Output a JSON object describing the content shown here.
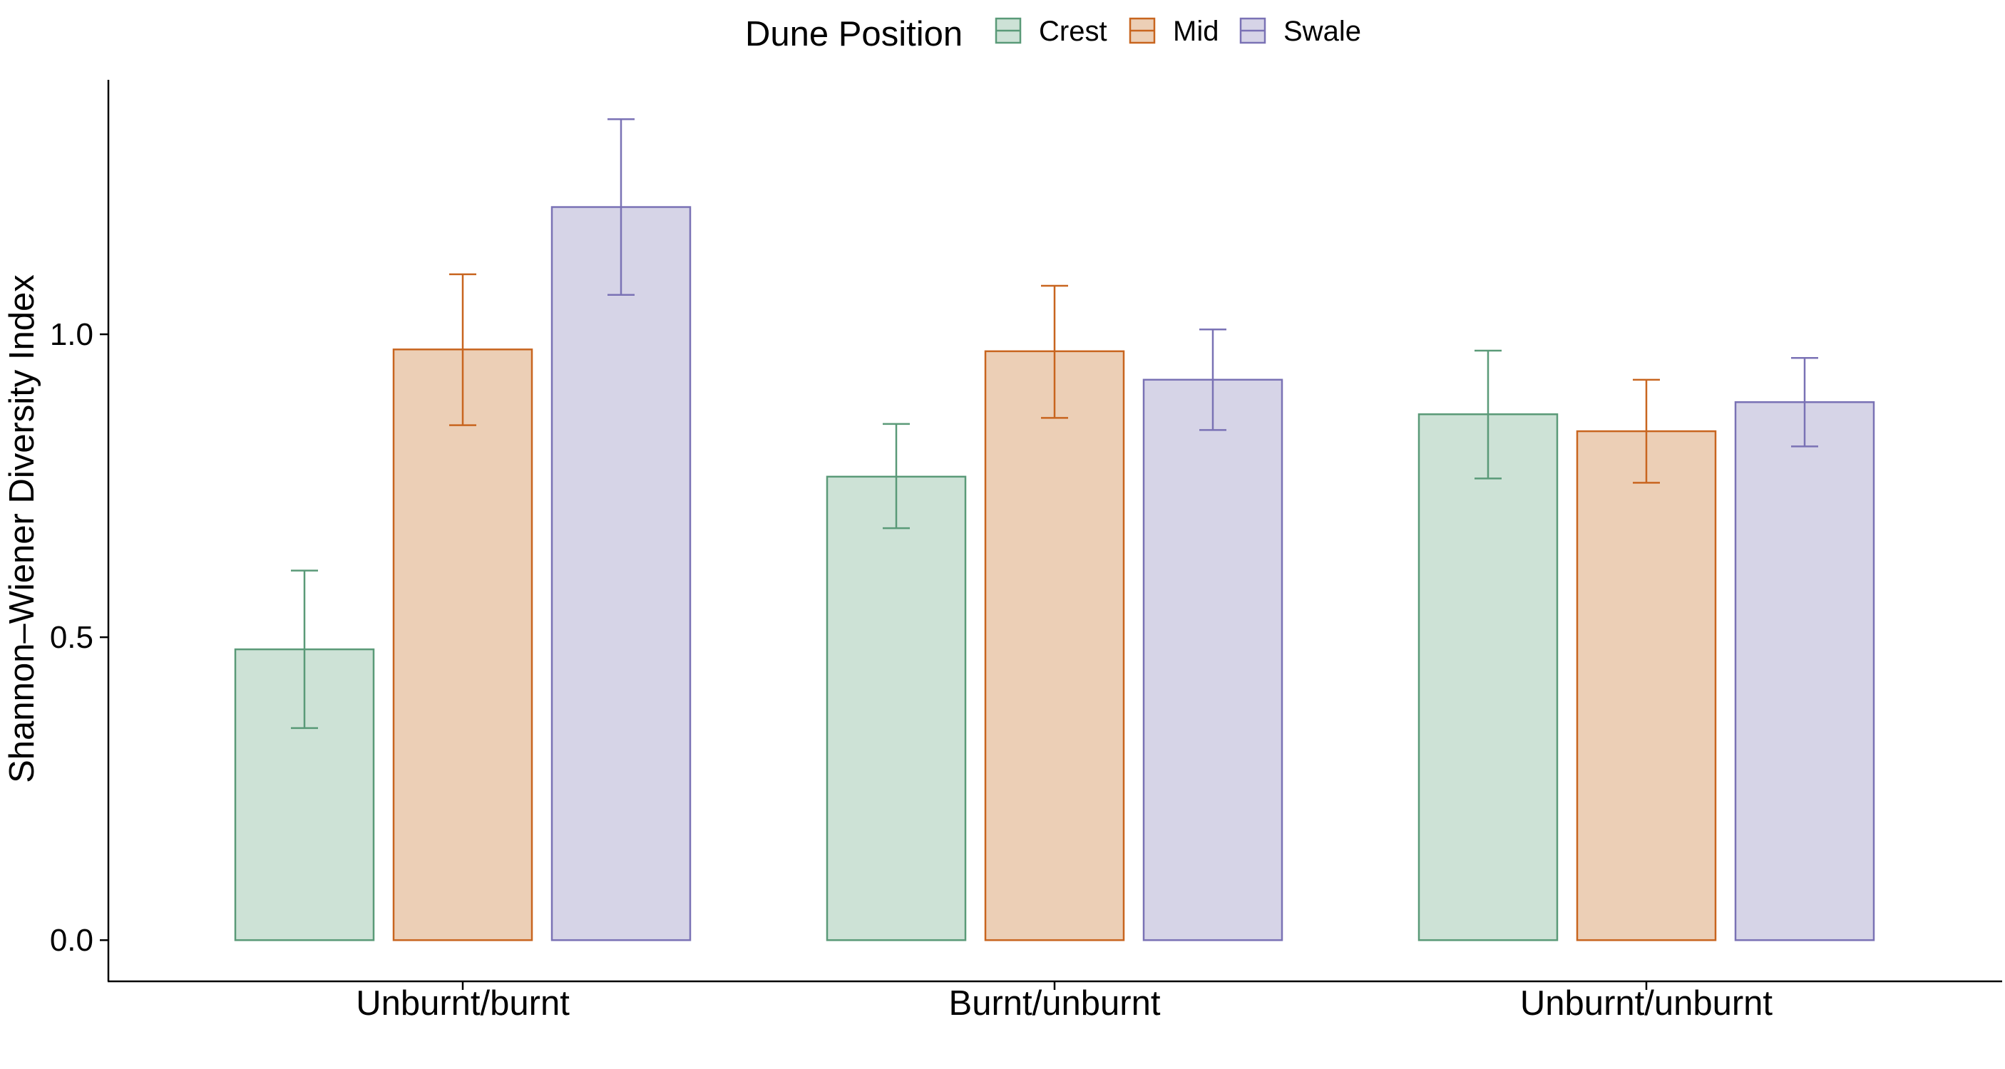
{
  "legend": {
    "title": "Dune Position",
    "entries": [
      {
        "label": "Crest",
        "fill": "#cde2d6",
        "stroke": "#5a9a78"
      },
      {
        "label": "Mid",
        "fill": "#eccfb6",
        "stroke": "#c8651f"
      },
      {
        "label": "Swale",
        "fill": "#d6d4e7",
        "stroke": "#7a72b5"
      }
    ]
  },
  "chart_data": {
    "type": "bar",
    "ylabel": "Shannon–Wiener Diversity Index",
    "xlabel": "",
    "categories": [
      "Unburnt/burnt",
      "Burnt/unburnt",
      "Unburnt/unburnt"
    ],
    "series": [
      {
        "name": "Crest",
        "values": [
          0.48,
          0.765,
          0.868
        ],
        "error_low": [
          0.35,
          0.68,
          0.762
        ],
        "error_high": [
          0.61,
          0.852,
          0.973
        ]
      },
      {
        "name": "Mid",
        "values": [
          0.975,
          0.972,
          0.84
        ],
        "error_low": [
          0.85,
          0.862,
          0.755
        ],
        "error_high": [
          1.099,
          1.08,
          0.925
        ]
      },
      {
        "name": "Swale",
        "values": [
          1.21,
          0.925,
          0.888
        ],
        "error_low": [
          1.065,
          0.842,
          0.815
        ],
        "error_high": [
          1.355,
          1.008,
          0.961
        ]
      }
    ],
    "yticks": [
      0.0,
      0.5,
      1.0
    ],
    "ytick_labels": [
      "0.0",
      "0.5",
      "1.0"
    ],
    "ylim": [
      -0.068,
      1.42
    ],
    "grid": false,
    "legend_position": "top"
  }
}
